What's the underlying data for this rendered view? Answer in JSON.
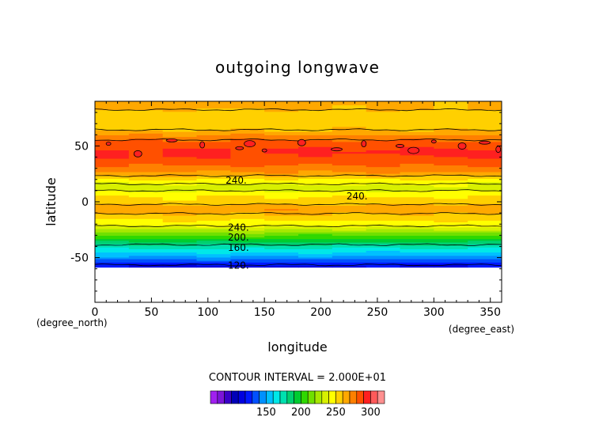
{
  "chart_data": {
    "type": "heatmap",
    "title": "outgoing longwave",
    "xlabel": "longitude",
    "ylabel": "latitude",
    "x_unit": "(degree_east)",
    "y_unit": "(degree_north)",
    "xlim": [
      0,
      360
    ],
    "ylim": [
      -90,
      90
    ],
    "x_ticks": [
      0,
      50,
      100,
      150,
      200,
      250,
      300,
      350
    ],
    "y_ticks": [
      -50,
      0,
      50
    ],
    "grid": false,
    "contour_interval_text": "CONTOUR INTERVAL = 2.000E+01",
    "contour_labels": [
      {
        "text": "240.",
        "lon": 125,
        "lat": 19
      },
      {
        "text": "240.",
        "lon": 232,
        "lat": 5
      },
      {
        "text": "240.",
        "lon": 127,
        "lat": -23
      },
      {
        "text": "200.",
        "lon": 127,
        "lat": -32
      },
      {
        "text": "160.",
        "lon": 127,
        "lat": -41
      },
      {
        "text": "120.",
        "lon": 127,
        "lat": -57
      }
    ],
    "lat_profile": {
      "lat": [
        -57,
        -54,
        -51,
        -48,
        -45,
        -42,
        -39,
        -36,
        -33,
        -30,
        -27,
        -24,
        -21,
        -18,
        -15,
        -12,
        -9,
        -6,
        -3,
        0,
        3,
        6,
        9,
        12,
        15,
        18,
        21,
        24,
        27,
        30,
        33,
        36,
        39,
        42,
        45,
        48,
        51,
        54,
        57,
        60,
        63,
        66,
        69,
        72,
        75,
        78,
        81,
        84,
        87
      ],
      "olr": [
        118,
        130,
        140,
        152,
        160,
        168,
        178,
        188,
        200,
        210,
        220,
        232,
        242,
        248,
        252,
        258,
        262,
        270,
        262,
        254,
        252,
        248,
        242,
        236,
        238,
        244,
        252,
        262,
        270,
        276,
        280,
        284,
        288,
        290,
        292,
        290,
        286,
        282,
        278,
        270,
        262,
        258,
        256,
        254,
        252,
        254,
        258,
        262,
        262
      ]
    },
    "colorbar": {
      "levels": [
        70,
        80,
        90,
        100,
        110,
        120,
        130,
        140,
        150,
        160,
        170,
        180,
        190,
        200,
        210,
        220,
        230,
        240,
        250,
        260,
        270,
        280,
        290,
        300,
        310,
        320
      ],
      "colors": [
        "#a020f0",
        "#7b15d8",
        "#3a00c8",
        "#0000b8",
        "#0000e0",
        "#0018ff",
        "#0050ff",
        "#0090ff",
        "#00c0ff",
        "#00e8e8",
        "#00e0b0",
        "#00d070",
        "#00cc30",
        "#30d800",
        "#70e000",
        "#a8e800",
        "#d8f000",
        "#ffff00",
        "#ffd000",
        "#ffa800",
        "#ff8000",
        "#ff5000",
        "#ff2020",
        "#ff5a5a",
        "#ff9090"
      ],
      "tick_values": [
        150,
        200,
        250,
        300
      ]
    }
  }
}
